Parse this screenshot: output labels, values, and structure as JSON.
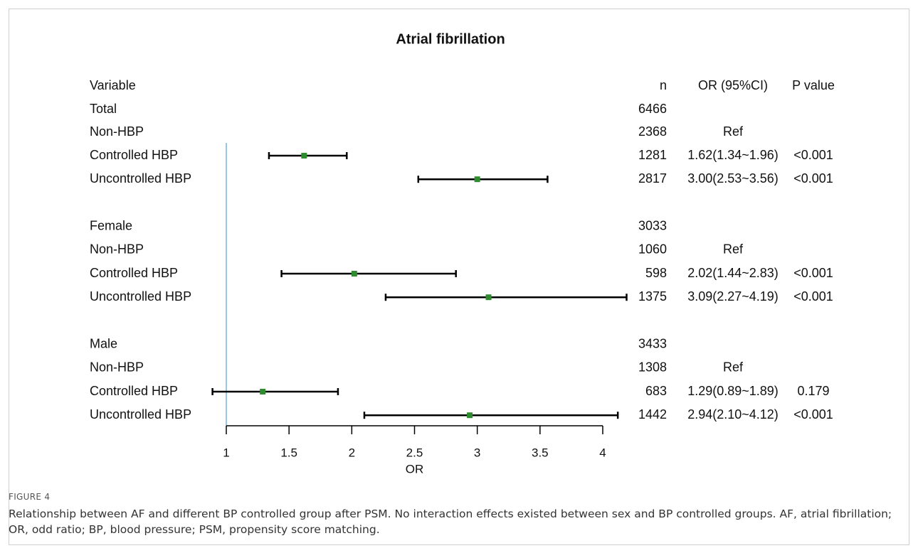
{
  "chart_data": {
    "type": "forest",
    "title": "Atrial fibrillation",
    "xlabel": "OR",
    "xlim": [
      1,
      4
    ],
    "xticks": [
      1,
      1.5,
      2,
      2.5,
      3,
      3.5,
      4
    ],
    "xtick_labels": [
      "1",
      "1.5",
      "2",
      "2.5",
      "3",
      "3.5",
      "4"
    ],
    "reference_line": 1,
    "marker_color": "#2e8b2e",
    "reference_line_color": "#7ab6d6",
    "headers": {
      "variable": "Variable",
      "n": "n",
      "or": "OR (95%CI)",
      "p": "P value"
    },
    "rows": [
      {
        "label": "Total",
        "n": "6466",
        "or_text": "",
        "p": ""
      },
      {
        "label": "Non-HBP",
        "n": "2368",
        "or_text": "Ref",
        "p": ""
      },
      {
        "label": "Controlled HBP",
        "n": "1281",
        "or_text": "1.62(1.34~1.96)",
        "p": "<0.001",
        "or": 1.62,
        "lower": 1.34,
        "upper": 1.96
      },
      {
        "label": "Uncontrolled HBP",
        "n": "2817",
        "or_text": "3.00(2.53~3.56)",
        "p": "<0.001",
        "or": 3.0,
        "lower": 2.53,
        "upper": 3.56
      },
      {
        "label": "",
        "n": "",
        "or_text": "",
        "p": ""
      },
      {
        "label": "Female",
        "n": "3033",
        "or_text": "",
        "p": ""
      },
      {
        "label": "Non-HBP",
        "n": "1060",
        "or_text": "Ref",
        "p": ""
      },
      {
        "label": "Controlled HBP",
        "n": "598",
        "or_text": "2.02(1.44~2.83)",
        "p": "<0.001",
        "or": 2.02,
        "lower": 1.44,
        "upper": 2.83
      },
      {
        "label": "Uncontrolled HBP",
        "n": "1375",
        "or_text": "3.09(2.27~4.19)",
        "p": "<0.001",
        "or": 3.09,
        "lower": 2.27,
        "upper": 4.19
      },
      {
        "label": "",
        "n": "",
        "or_text": "",
        "p": ""
      },
      {
        "label": "Male",
        "n": "3433",
        "or_text": "",
        "p": ""
      },
      {
        "label": "Non-HBP",
        "n": "1308",
        "or_text": "Ref",
        "p": ""
      },
      {
        "label": "Controlled HBP",
        "n": "683",
        "or_text": "1.29(0.89~1.89)",
        "p": "0.179",
        "or": 1.29,
        "lower": 0.89,
        "upper": 1.89
      },
      {
        "label": "Uncontrolled HBP",
        "n": "1442",
        "or_text": "2.94(2.10~4.12)",
        "p": "<0.001",
        "or": 2.94,
        "lower": 2.1,
        "upper": 4.12
      }
    ]
  },
  "caption": {
    "label": "FIGURE 4",
    "text": "Relationship between AF and different BP controlled group after PSM. No interaction effects existed between sex and BP controlled groups. AF, atrial fibrillation; OR, odd ratio; BP, blood pressure; PSM, propensity score matching."
  }
}
